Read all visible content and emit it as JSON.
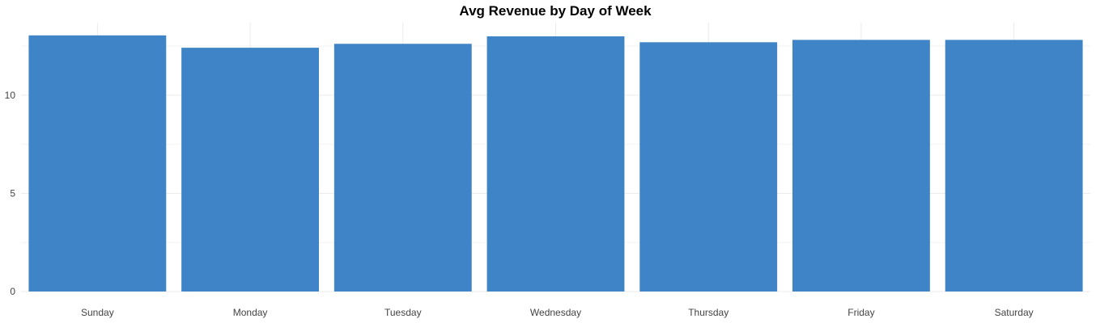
{
  "chart_data": {
    "type": "bar",
    "title": "Avg Revenue by Day of Week",
    "xlabel": "",
    "ylabel": "",
    "categories": [
      "Sunday",
      "Monday",
      "Tuesday",
      "Wednesday",
      "Thursday",
      "Friday",
      "Saturday"
    ],
    "values": [
      13.05,
      12.42,
      12.62,
      13.0,
      12.7,
      12.82,
      12.82
    ],
    "ylim": [
      0,
      13.7
    ],
    "yticks": [
      0,
      5,
      10
    ],
    "grid": true,
    "bar_color": "#3e84c6"
  }
}
